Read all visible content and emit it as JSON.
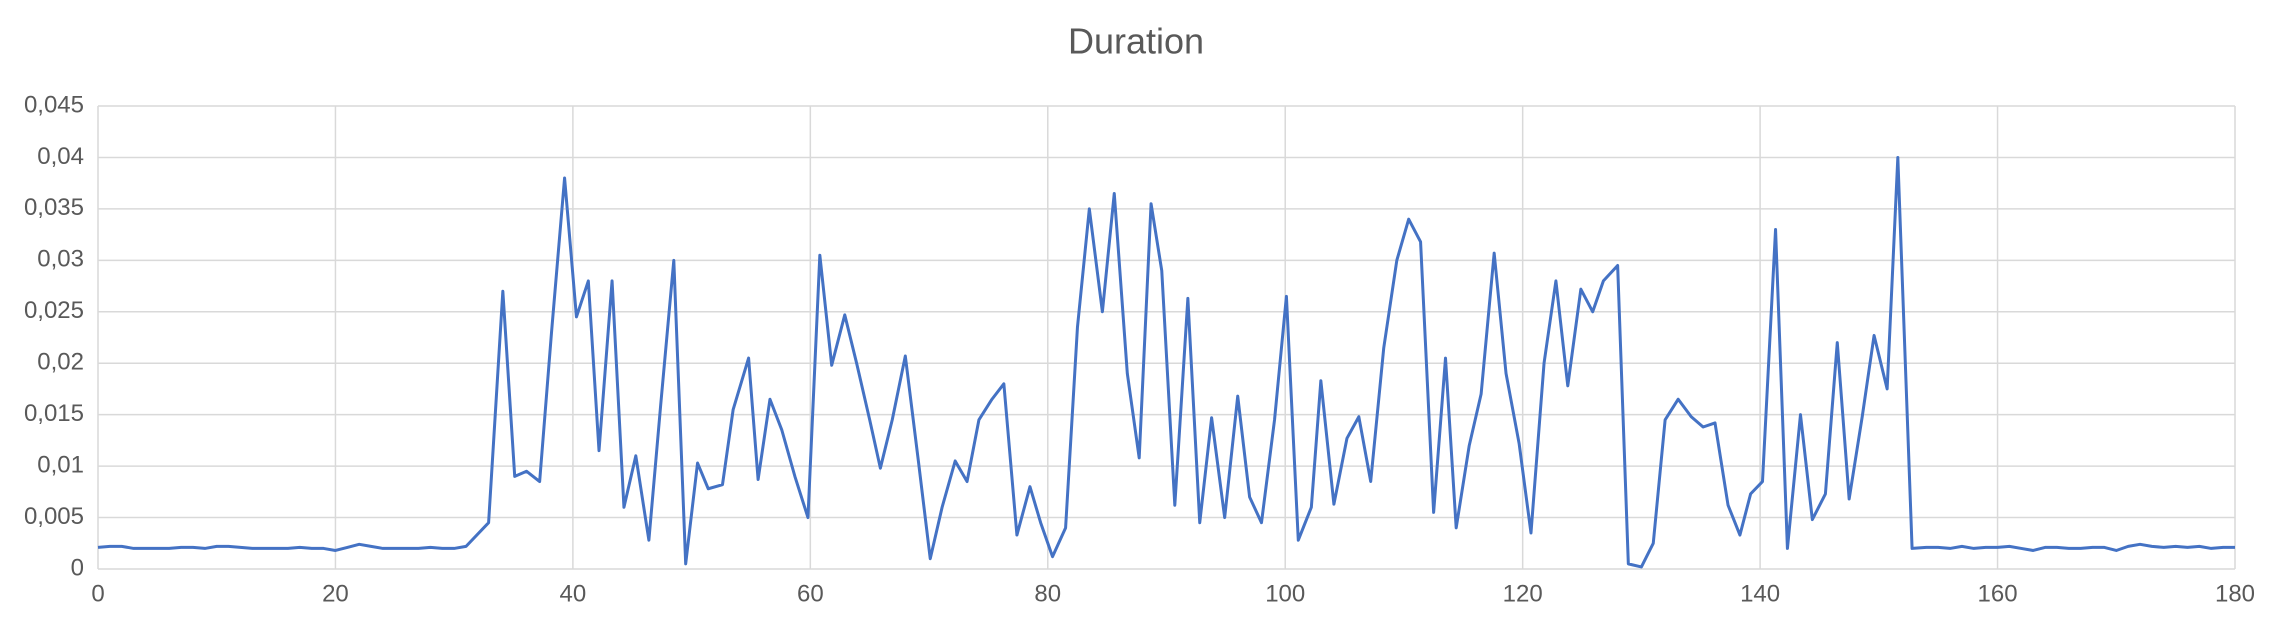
{
  "chart_data": {
    "type": "line",
    "title": "Duration",
    "x": [
      0,
      1,
      2,
      3,
      4,
      5,
      6,
      7,
      8,
      9,
      10,
      11,
      12,
      13,
      14,
      15,
      16,
      17,
      18,
      19,
      20,
      21,
      22,
      23,
      24,
      25,
      26,
      27,
      28,
      29,
      30,
      31,
      32.9,
      34.1,
      35.1,
      36.1,
      37.2,
      38.2,
      39.3,
      40.3,
      41.3,
      42.2,
      43.3,
      44.3,
      45.3,
      46.4,
      47.4,
      48.5,
      49.5,
      50.5,
      51.4,
      52.6,
      53.5,
      54.8,
      55.6,
      56.6,
      57.6,
      58.7,
      59.8,
      60.8,
      61.8,
      62.9,
      63.9,
      65.0,
      65.9,
      66.9,
      68.0,
      69.1,
      70.1,
      71.1,
      72.2,
      73.2,
      74.2,
      75.3,
      76.3,
      77.4,
      78.5,
      79.4,
      80.4,
      81.5,
      82.5,
      83.5,
      84.6,
      85.6,
      86.7,
      87.7,
      88.7,
      89.6,
      90.7,
      91.8,
      92.8,
      93.8,
      94.9,
      96.0,
      97.0,
      98.0,
      99.1,
      100.1,
      101.1,
      102.2,
      103.0,
      104.1,
      105.2,
      106.2,
      107.2,
      108.3,
      109.4,
      110.4,
      111.4,
      112.5,
      113.5,
      114.4,
      115.5,
      116.5,
      117.6,
      118.6,
      119.7,
      120.7,
      121.8,
      122.8,
      123.8,
      124.9,
      125.9,
      126.8,
      128.0,
      128.9,
      130.0,
      131.0,
      132.0,
      133.1,
      134.2,
      135.2,
      136.2,
      137.3,
      138.3,
      139.2,
      140.2,
      141.3,
      142.3,
      143.4,
      144.4,
      145.5,
      146.5,
      147.5,
      148.6,
      149.6,
      150.7,
      151.6,
      152.8,
      154,
      155,
      156,
      157,
      158,
      159,
      160,
      161,
      162,
      163,
      164,
      165,
      166,
      167,
      168,
      169,
      170,
      171,
      172,
      173,
      174,
      175,
      176,
      177,
      178,
      179,
      180
    ],
    "values": [
      0.0021,
      0.0022,
      0.0022,
      0.002,
      0.002,
      0.002,
      0.002,
      0.0021,
      0.0021,
      0.002,
      0.0022,
      0.0022,
      0.0021,
      0.002,
      0.002,
      0.002,
      0.002,
      0.0021,
      0.002,
      0.002,
      0.0018,
      0.0021,
      0.0024,
      0.0022,
      0.002,
      0.002,
      0.002,
      0.002,
      0.0021,
      0.002,
      0.002,
      0.0022,
      0.0045,
      0.027,
      0.009,
      0.0095,
      0.0085,
      0.023,
      0.038,
      0.0245,
      0.028,
      0.0115,
      0.028,
      0.006,
      0.011,
      0.0028,
      0.016,
      0.03,
      0.0005,
      0.0103,
      0.0078,
      0.0082,
      0.0155,
      0.0205,
      0.0087,
      0.0165,
      0.0135,
      0.009,
      0.005,
      0.0305,
      0.0198,
      0.0247,
      0.02,
      0.0145,
      0.0098,
      0.0145,
      0.0207,
      0.0105,
      0.001,
      0.006,
      0.0105,
      0.0085,
      0.0145,
      0.0165,
      0.018,
      0.0033,
      0.008,
      0.0045,
      0.0012,
      0.004,
      0.0235,
      0.035,
      0.025,
      0.0365,
      0.019,
      0.0108,
      0.0355,
      0.029,
      0.0062,
      0.0263,
      0.0045,
      0.0147,
      0.005,
      0.0168,
      0.007,
      0.0045,
      0.0145,
      0.0265,
      0.0028,
      0.006,
      0.0183,
      0.0063,
      0.0127,
      0.0148,
      0.0085,
      0.0215,
      0.03,
      0.034,
      0.0318,
      0.0055,
      0.0205,
      0.004,
      0.012,
      0.017,
      0.0307,
      0.019,
      0.0122,
      0.0035,
      0.02,
      0.028,
      0.0178,
      0.0272,
      0.025,
      0.028,
      0.0295,
      0.0005,
      0.0002,
      0.0025,
      0.0145,
      0.0165,
      0.0148,
      0.0138,
      0.0142,
      0.0062,
      0.0033,
      0.0073,
      0.0085,
      0.033,
      0.002,
      0.015,
      0.0048,
      0.0073,
      0.022,
      0.0068,
      0.0148,
      0.0227,
      0.0175,
      0.04,
      0.002,
      0.0021,
      0.0021,
      0.002,
      0.0022,
      0.002,
      0.0021,
      0.0021,
      0.0022,
      0.002,
      0.0018,
      0.0021,
      0.0021,
      0.002,
      0.002,
      0.0021,
      0.0021,
      0.0018,
      0.0022,
      0.0024,
      0.0022,
      0.0021,
      0.0022,
      0.0021,
      0.0022,
      0.002,
      0.0021,
      0.0021
    ],
    "color": "#4472c4",
    "xlim": [
      0,
      180
    ],
    "xticks": [
      0,
      20,
      40,
      60,
      80,
      100,
      120,
      140,
      160,
      180
    ],
    "ylim": [
      0,
      0.045
    ],
    "yticks": [
      0,
      {
        "value": 0.005,
        "label": "0,005"
      },
      {
        "value": 0.01,
        "label": "0,01"
      },
      {
        "value": 0.015,
        "label": "0,015"
      },
      {
        "value": 0.02,
        "label": "0,02"
      },
      {
        "value": 0.025,
        "label": "0,025"
      },
      {
        "value": 0.03,
        "label": "0,03"
      },
      {
        "value": 0.035,
        "label": "0,035"
      },
      {
        "value": 0.04,
        "label": "0,04"
      },
      {
        "value": 0.045,
        "label": "0,045"
      }
    ],
    "grid": true
  }
}
